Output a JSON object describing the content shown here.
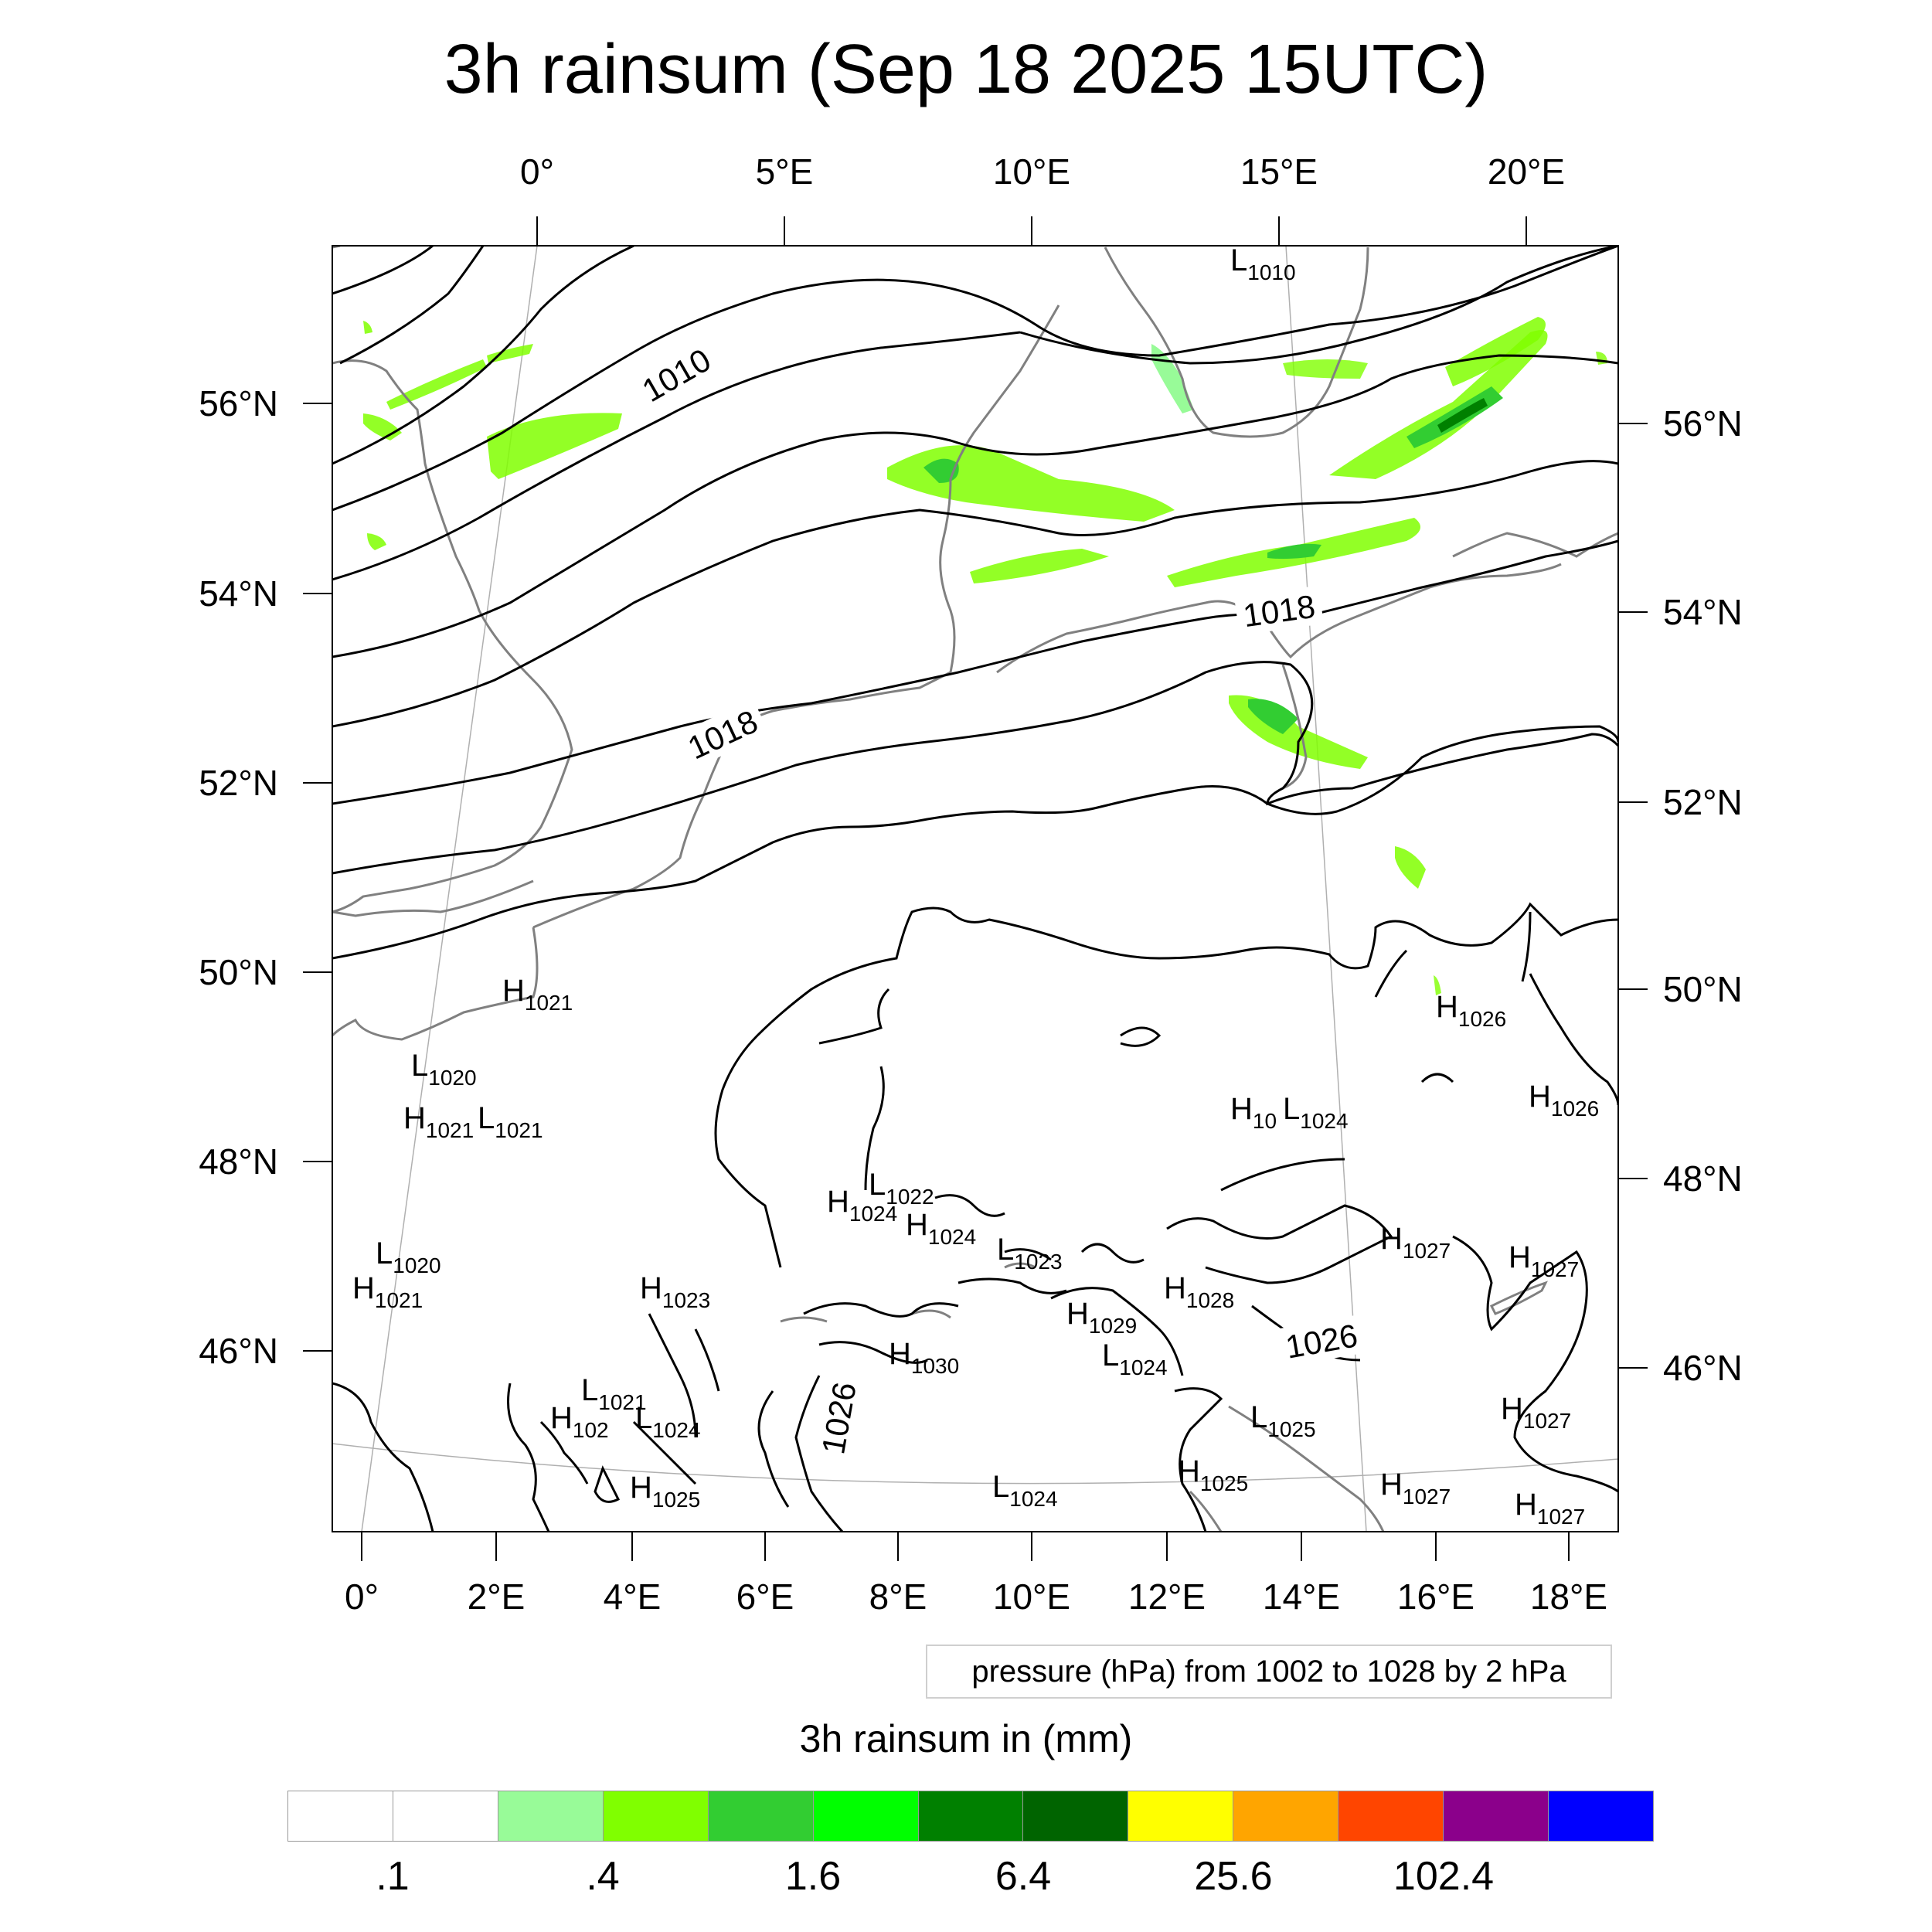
{
  "title": "3h rainsum (Sep 18 2025 15UTC)",
  "map": {
    "top_lon_labels": [
      "0°",
      "5°E",
      "10°E",
      "15°E",
      "20°E"
    ],
    "bottom_lon_labels": [
      "0°",
      "2°E",
      "4°E",
      "6°E",
      "8°E",
      "10°E",
      "12°E",
      "14°E",
      "16°E",
      "18°E"
    ],
    "left_lat_labels": [
      "56°N",
      "54°N",
      "52°N",
      "50°N",
      "48°N",
      "46°N"
    ],
    "right_lat_labels": [
      "56°N",
      "54°N",
      "52°N",
      "50°N",
      "48°N",
      "46°N"
    ],
    "isobar_labels": [
      "1010",
      "1018",
      "1018",
      "1026",
      "1026"
    ],
    "pressure_centers": [
      {
        "letter": "L",
        "value": "1010"
      },
      {
        "letter": "H",
        "value": "1021"
      },
      {
        "letter": "L",
        "value": "1020"
      },
      {
        "letter": "H",
        "value": "1021"
      },
      {
        "letter": "L",
        "value": "1021"
      },
      {
        "letter": "L",
        "value": "1020"
      },
      {
        "letter": "H",
        "value": "1021"
      },
      {
        "letter": "H",
        "value": "1023"
      },
      {
        "letter": "L",
        "value": "1021"
      },
      {
        "letter": "H",
        "value": "102"
      },
      {
        "letter": "L",
        "value": "1024"
      },
      {
        "letter": "H",
        "value": "1025"
      },
      {
        "letter": "L",
        "value": "1022"
      },
      {
        "letter": "H",
        "value": "1024"
      },
      {
        "letter": "H",
        "value": "1024"
      },
      {
        "letter": "L",
        "value": "1023"
      },
      {
        "letter": "H",
        "value": "1030"
      },
      {
        "letter": "H",
        "value": "1029"
      },
      {
        "letter": "L",
        "value": "1024"
      },
      {
        "letter": "H",
        "value": "1028"
      },
      {
        "letter": "L",
        "value": "1024"
      },
      {
        "letter": "H",
        "value": "10"
      },
      {
        "letter": "L",
        "value": "1024"
      },
      {
        "letter": "H",
        "value": "1025"
      },
      {
        "letter": "L",
        "value": "1025"
      },
      {
        "letter": "H",
        "value": "1026"
      },
      {
        "letter": "H",
        "value": "1026"
      },
      {
        "letter": "H",
        "value": "1027"
      },
      {
        "letter": "H",
        "value": "1027"
      },
      {
        "letter": "H",
        "value": "1027"
      },
      {
        "letter": "H",
        "value": "1027"
      },
      {
        "letter": "H",
        "value": "1027"
      }
    ]
  },
  "info_box": "pressure (hPa) from 1002 to 1028 by 2 hPa",
  "colorbar": {
    "title": "3h rainsum in (mm)",
    "colors": [
      "#ffffff",
      "#ffffff",
      "#98fb98",
      "#80ff00",
      "#32cd32",
      "#00ff00",
      "#008000",
      "#006400",
      "#ffff00",
      "#ffa500",
      "#ff4500",
      "#8b008b",
      "#0000ff"
    ],
    "tick_labels": [
      ".1",
      ".4",
      "1.6",
      "6.4",
      "25.6",
      "102.4"
    ]
  }
}
